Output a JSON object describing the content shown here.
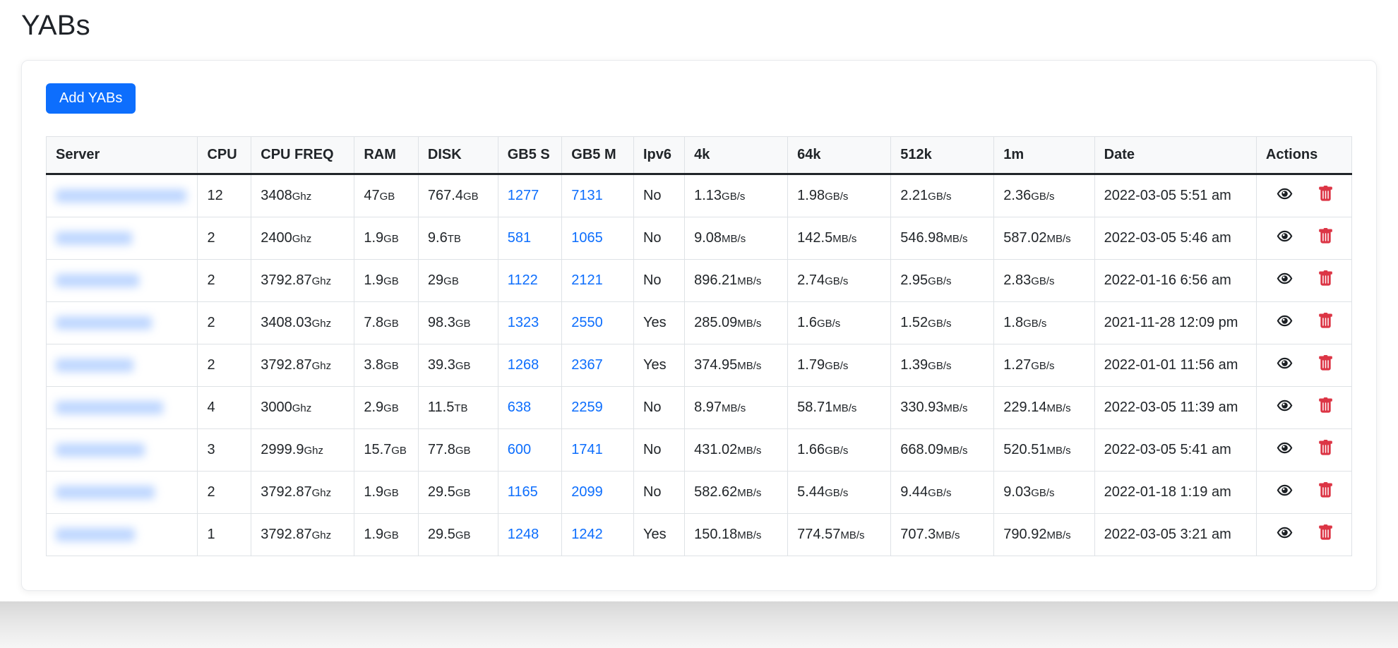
{
  "page": {
    "title": "YABs"
  },
  "toolbar": {
    "add_button_label": "Add YABs"
  },
  "colors": {
    "primary": "#0d6efd",
    "link": "#0d6efd",
    "danger": "#dc3545",
    "header_bg": "#f8f9fa",
    "table_border": "#dee2e6",
    "text": "#212529"
  },
  "icons": {
    "view": "eye-icon",
    "delete": "trash-icon"
  },
  "table": {
    "columns": [
      "Server",
      "CPU",
      "CPU FREQ",
      "RAM",
      "DISK",
      "GB5 S",
      "GB5 M",
      "Ipv6",
      "4k",
      "64k",
      "512k",
      "1m",
      "Date",
      "Actions"
    ],
    "rows": [
      {
        "server_redacted": true,
        "server_blur_width": 185,
        "cpu": "12",
        "cpu_freq": {
          "v": "3408",
          "u": "Ghz"
        },
        "ram": {
          "v": "47",
          "u": "GB"
        },
        "disk": {
          "v": "767.4",
          "u": "GB"
        },
        "gb5_s": "1277",
        "gb5_m": "7131",
        "ipv6": "No",
        "bw_4k": {
          "v": "1.13",
          "u": "GB/s"
        },
        "bw_64k": {
          "v": "1.98",
          "u": "GB/s"
        },
        "bw_512k": {
          "v": "2.21",
          "u": "GB/s"
        },
        "bw_1m": {
          "v": "2.36",
          "u": "GB/s"
        },
        "date": "2022-03-05 5:51 am"
      },
      {
        "server_redacted": true,
        "server_blur_width": 108,
        "cpu": "2",
        "cpu_freq": {
          "v": "2400",
          "u": "Ghz"
        },
        "ram": {
          "v": "1.9",
          "u": "GB"
        },
        "disk": {
          "v": "9.6",
          "u": "TB"
        },
        "gb5_s": "581",
        "gb5_m": "1065",
        "ipv6": "No",
        "bw_4k": {
          "v": "9.08",
          "u": "MB/s"
        },
        "bw_64k": {
          "v": "142.5",
          "u": "MB/s"
        },
        "bw_512k": {
          "v": "546.98",
          "u": "MB/s"
        },
        "bw_1m": {
          "v": "587.02",
          "u": "MB/s"
        },
        "date": "2022-03-05 5:46 am"
      },
      {
        "server_redacted": true,
        "server_blur_width": 118,
        "cpu": "2",
        "cpu_freq": {
          "v": "3792.87",
          "u": "Ghz"
        },
        "ram": {
          "v": "1.9",
          "u": "GB"
        },
        "disk": {
          "v": "29",
          "u": "GB"
        },
        "gb5_s": "1122",
        "gb5_m": "2121",
        "ipv6": "No",
        "bw_4k": {
          "v": "896.21",
          "u": "MB/s"
        },
        "bw_64k": {
          "v": "2.74",
          "u": "GB/s"
        },
        "bw_512k": {
          "v": "2.95",
          "u": "GB/s"
        },
        "bw_1m": {
          "v": "2.83",
          "u": "GB/s"
        },
        "date": "2022-01-16 6:56 am"
      },
      {
        "server_redacted": true,
        "server_blur_width": 136,
        "cpu": "2",
        "cpu_freq": {
          "v": "3408.03",
          "u": "Ghz"
        },
        "ram": {
          "v": "7.8",
          "u": "GB"
        },
        "disk": {
          "v": "98.3",
          "u": "GB"
        },
        "gb5_s": "1323",
        "gb5_m": "2550",
        "ipv6": "Yes",
        "bw_4k": {
          "v": "285.09",
          "u": "MB/s"
        },
        "bw_64k": {
          "v": "1.6",
          "u": "GB/s"
        },
        "bw_512k": {
          "v": "1.52",
          "u": "GB/s"
        },
        "bw_1m": {
          "v": "1.8",
          "u": "GB/s"
        },
        "date": "2021-11-28 12:09 pm"
      },
      {
        "server_redacted": true,
        "server_blur_width": 110,
        "cpu": "2",
        "cpu_freq": {
          "v": "3792.87",
          "u": "Ghz"
        },
        "ram": {
          "v": "3.8",
          "u": "GB"
        },
        "disk": {
          "v": "39.3",
          "u": "GB"
        },
        "gb5_s": "1268",
        "gb5_m": "2367",
        "ipv6": "Yes",
        "bw_4k": {
          "v": "374.95",
          "u": "MB/s"
        },
        "bw_64k": {
          "v": "1.79",
          "u": "GB/s"
        },
        "bw_512k": {
          "v": "1.39",
          "u": "GB/s"
        },
        "bw_1m": {
          "v": "1.27",
          "u": "GB/s"
        },
        "date": "2022-01-01 11:56 am"
      },
      {
        "server_redacted": true,
        "server_blur_width": 152,
        "cpu": "4",
        "cpu_freq": {
          "v": "3000",
          "u": "Ghz"
        },
        "ram": {
          "v": "2.9",
          "u": "GB"
        },
        "disk": {
          "v": "11.5",
          "u": "TB"
        },
        "gb5_s": "638",
        "gb5_m": "2259",
        "ipv6": "No",
        "bw_4k": {
          "v": "8.97",
          "u": "MB/s"
        },
        "bw_64k": {
          "v": "58.71",
          "u": "MB/s"
        },
        "bw_512k": {
          "v": "330.93",
          "u": "MB/s"
        },
        "bw_1m": {
          "v": "229.14",
          "u": "MB/s"
        },
        "date": "2022-03-05 11:39 am"
      },
      {
        "server_redacted": true,
        "server_blur_width": 126,
        "cpu": "3",
        "cpu_freq": {
          "v": "2999.9",
          "u": "Ghz"
        },
        "ram": {
          "v": "15.7",
          "u": "GB"
        },
        "disk": {
          "v": "77.8",
          "u": "GB"
        },
        "gb5_s": "600",
        "gb5_m": "1741",
        "ipv6": "No",
        "bw_4k": {
          "v": "431.02",
          "u": "MB/s"
        },
        "bw_64k": {
          "v": "1.66",
          "u": "GB/s"
        },
        "bw_512k": {
          "v": "668.09",
          "u": "MB/s"
        },
        "bw_1m": {
          "v": "520.51",
          "u": "MB/s"
        },
        "date": "2022-03-05 5:41 am"
      },
      {
        "server_redacted": true,
        "server_blur_width": 140,
        "cpu": "2",
        "cpu_freq": {
          "v": "3792.87",
          "u": "Ghz"
        },
        "ram": {
          "v": "1.9",
          "u": "GB"
        },
        "disk": {
          "v": "29.5",
          "u": "GB"
        },
        "gb5_s": "1165",
        "gb5_m": "2099",
        "ipv6": "No",
        "bw_4k": {
          "v": "582.62",
          "u": "MB/s"
        },
        "bw_64k": {
          "v": "5.44",
          "u": "GB/s"
        },
        "bw_512k": {
          "v": "9.44",
          "u": "GB/s"
        },
        "bw_1m": {
          "v": "9.03",
          "u": "GB/s"
        },
        "date": "2022-01-18 1:19 am"
      },
      {
        "server_redacted": true,
        "server_blur_width": 112,
        "cpu": "1",
        "cpu_freq": {
          "v": "3792.87",
          "u": "Ghz"
        },
        "ram": {
          "v": "1.9",
          "u": "GB"
        },
        "disk": {
          "v": "29.5",
          "u": "GB"
        },
        "gb5_s": "1248",
        "gb5_m": "1242",
        "ipv6": "Yes",
        "bw_4k": {
          "v": "150.18",
          "u": "MB/s"
        },
        "bw_64k": {
          "v": "774.57",
          "u": "MB/s"
        },
        "bw_512k": {
          "v": "707.3",
          "u": "MB/s"
        },
        "bw_1m": {
          "v": "790.92",
          "u": "MB/s"
        },
        "date": "2022-03-05 3:21 am"
      }
    ]
  }
}
